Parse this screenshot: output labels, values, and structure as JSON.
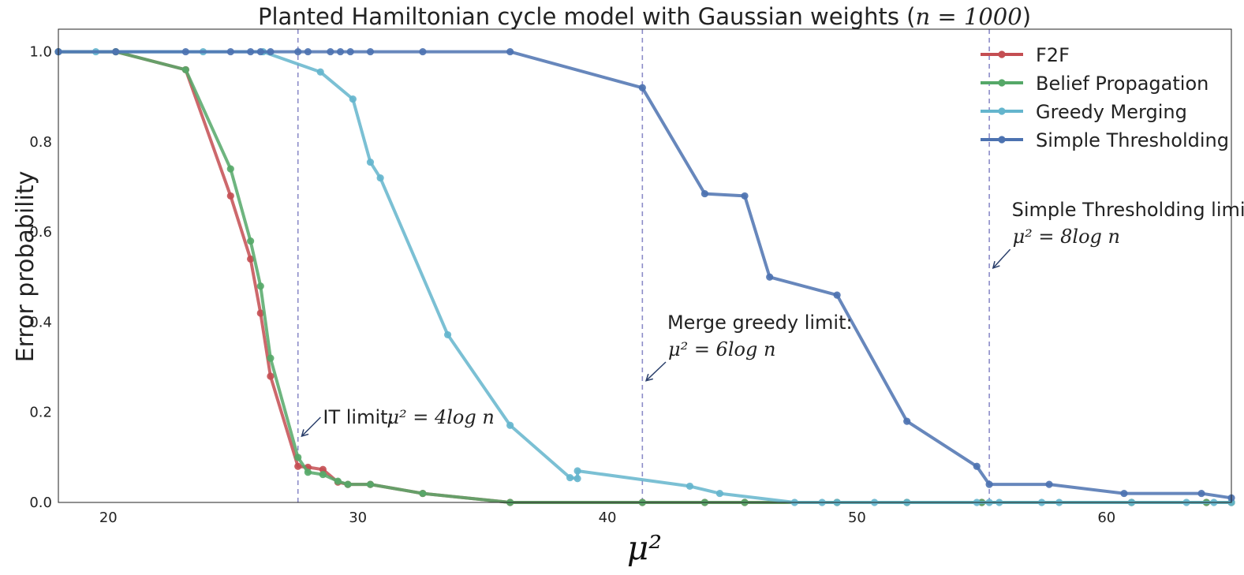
{
  "chart_data": {
    "type": "line",
    "title": "Planted Hamiltonian cycle model with Gaussian weights (",
    "title_math": "n = 1000",
    "title_suffix": ")",
    "xlabel": "μ²",
    "ylabel": "Error probability",
    "xlim": [
      18,
      65
    ],
    "ylim": [
      0,
      1.05
    ],
    "xticks": [
      "20",
      "30",
      "40",
      "50",
      "60"
    ],
    "xtick_values": [
      20,
      30,
      40,
      50,
      60
    ],
    "yticks": [
      "0.0",
      "0.2",
      "0.4",
      "0.6",
      "0.8",
      "1.0"
    ],
    "ytick_values": [
      0,
      0.2,
      0.4,
      0.6,
      0.8,
      1.0
    ],
    "grid": false,
    "legend_placement": "top-right",
    "vlines": [
      27.6,
      41.4,
      55.3
    ],
    "vline_color": "#8c8cc8",
    "series": [
      {
        "name": "F2F",
        "color": "#c44e52",
        "x": [
          18.0,
          20.3,
          23.1,
          24.9,
          25.7,
          26.1,
          26.5,
          27.6,
          28.0,
          28.6,
          29.2,
          29.6,
          30.5,
          32.6,
          36.1,
          41.4,
          43.9,
          45.5,
          49.2,
          52.0,
          55.0,
          61.0,
          64.0,
          65.0
        ],
        "y": [
          1.0,
          1.0,
          0.96,
          0.68,
          0.54,
          0.42,
          0.28,
          0.08,
          0.078,
          0.073,
          0.045,
          0.04,
          0.04,
          0.02,
          0.0,
          0.0,
          0.0,
          0.0,
          0.0,
          0.0,
          0.0,
          0.0,
          0.0,
          0.0
        ]
      },
      {
        "name": "Belief Propagation",
        "color": "#55a868",
        "x": [
          18.0,
          20.3,
          23.1,
          24.9,
          25.7,
          26.1,
          26.5,
          27.6,
          28.0,
          28.6,
          29.2,
          29.6,
          30.5,
          32.6,
          36.1,
          41.4,
          43.9,
          45.5,
          49.2,
          52.0,
          55.0,
          61.0,
          64.0,
          65.0
        ],
        "y": [
          1.0,
          1.0,
          0.96,
          0.74,
          0.58,
          0.48,
          0.32,
          0.1,
          0.067,
          0.062,
          0.047,
          0.04,
          0.04,
          0.02,
          0.0,
          0.0,
          0.0,
          0.0,
          0.0,
          0.0,
          0.0,
          0.0,
          0.0,
          0.0
        ]
      },
      {
        "name": "Greedy Merging",
        "color": "#64b5cd",
        "x": [
          18.0,
          19.5,
          23.8,
          26.2,
          28.5,
          29.8,
          30.5,
          30.9,
          33.6,
          36.1,
          38.5,
          38.8,
          38.8,
          43.3,
          44.5,
          47.5,
          48.6,
          49.2,
          50.7,
          52.0,
          54.8,
          55.3,
          55.7,
          57.4,
          58.1,
          61.0,
          63.2,
          64.3,
          65.0
        ],
        "y": [
          1.0,
          1.0,
          1.0,
          1.0,
          0.955,
          0.895,
          0.755,
          0.72,
          0.372,
          0.171,
          0.055,
          0.053,
          0.07,
          0.036,
          0.02,
          0.0,
          0.0,
          0.0,
          0.0,
          0.0,
          0.0,
          0.0,
          0.0,
          0.0,
          0.0,
          0.0,
          0.0,
          0.0,
          0.0
        ]
      },
      {
        "name": "Simple Thresholding",
        "color": "#4c72b0",
        "x": [
          18.0,
          20.3,
          23.1,
          24.9,
          25.7,
          26.1,
          26.5,
          27.6,
          28.0,
          28.9,
          29.3,
          29.7,
          30.5,
          32.6,
          36.1,
          41.4,
          43.9,
          45.5,
          46.5,
          49.2,
          52.0,
          54.8,
          55.3,
          57.7,
          60.7,
          63.8,
          65.0
        ],
        "y": [
          1.0,
          1.0,
          1.0,
          1.0,
          1.0,
          1.0,
          1.0,
          1.0,
          1.0,
          1.0,
          1.0,
          1.0,
          1.0,
          1.0,
          1.0,
          0.92,
          0.685,
          0.68,
          0.5,
          0.46,
          0.18,
          0.08,
          0.04,
          0.04,
          0.02,
          0.02,
          0.01
        ]
      }
    ],
    "annotations": [
      {
        "label": "IT limit:",
        "math": "μ² = 4log n",
        "tx": 28.6,
        "ty": 0.175,
        "ax": 27.75,
        "ay": 0.147
      },
      {
        "label": "Merge greedy limit:",
        "math": "μ² = 6log n",
        "tx": 42.4,
        "ty": 0.385,
        "ax": 41.55,
        "ay": 0.27
      },
      {
        "label": "Simple Thresholding limit:",
        "math": "μ² = 8log n",
        "tx": 56.2,
        "ty": 0.635,
        "ax": 55.45,
        "ay": 0.52
      }
    ]
  }
}
